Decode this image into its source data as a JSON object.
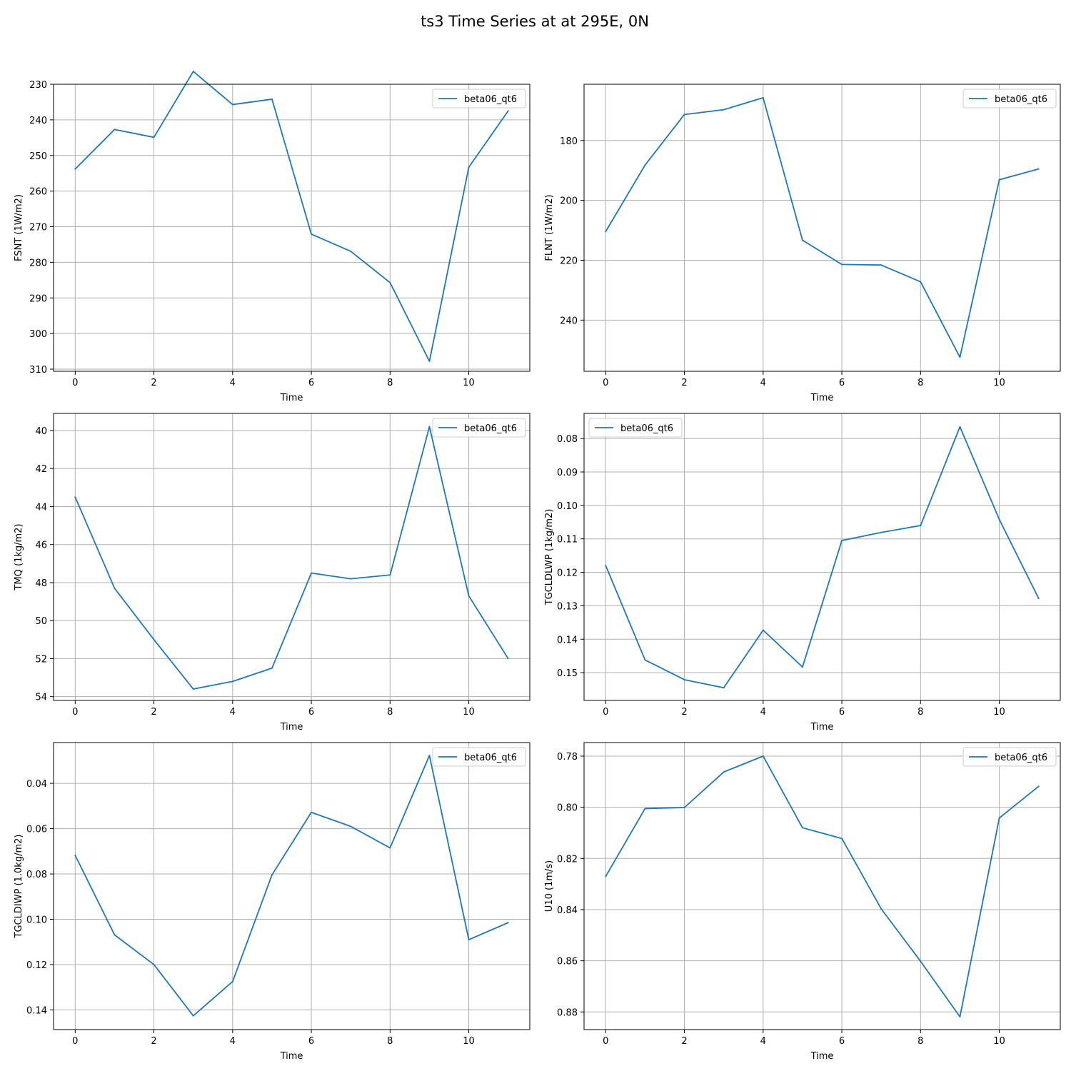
{
  "figure": {
    "title": "ts3 Time Series at at 295E, 0N"
  },
  "colors": {
    "series": "#1f77b4",
    "grid": "#b0b0b0",
    "axes": "#000000"
  },
  "chart_data": [
    {
      "type": "line",
      "xlabel": "Time",
      "ylabel": "FSNT (1W/m2)",
      "x": [
        0,
        1,
        2,
        3,
        4,
        5,
        6,
        7,
        8,
        9,
        10,
        11
      ],
      "xticks": [
        0,
        2,
        4,
        6,
        8,
        10
      ],
      "yticks": [
        230,
        240,
        250,
        260,
        270,
        280,
        290,
        300,
        310
      ],
      "ylim": [
        310.6,
        230
      ],
      "y_inverted": true,
      "grid": true,
      "legend_position": "upper right",
      "series": [
        {
          "name": "beta06_qt6",
          "values": [
            253.8,
            242.7,
            244.9,
            226.4,
            235.7,
            234.2,
            272.1,
            276.9,
            285.7,
            307.8,
            253.3,
            237.5
          ]
        }
      ]
    },
    {
      "type": "line",
      "xlabel": "Time",
      "ylabel": "FLNT (1W/m2)",
      "x": [
        0,
        1,
        2,
        3,
        4,
        5,
        6,
        7,
        8,
        9,
        10,
        11
      ],
      "xticks": [
        0,
        2,
        4,
        6,
        8,
        10
      ],
      "yticks": [
        180,
        200,
        220,
        240
      ],
      "ylim": [
        257.1,
        161.2
      ],
      "y_inverted": true,
      "grid": true,
      "legend_position": "upper right",
      "series": [
        {
          "name": "beta06_qt6",
          "values": [
            210.4,
            188.2,
            171.3,
            169.7,
            165.7,
            213.3,
            221.4,
            221.6,
            227.2,
            252.4,
            193.1,
            189.5
          ]
        }
      ]
    },
    {
      "type": "line",
      "xlabel": "Time",
      "ylabel": "TMQ (1kg/m2)",
      "x": [
        0,
        1,
        2,
        3,
        4,
        5,
        6,
        7,
        8,
        9,
        10,
        11
      ],
      "xticks": [
        0,
        2,
        4,
        6,
        8,
        10
      ],
      "yticks": [
        40,
        42,
        44,
        46,
        48,
        50,
        52,
        54
      ],
      "ylim": [
        54.2,
        39.1
      ],
      "y_inverted": true,
      "grid": true,
      "legend_position": "upper right",
      "series": [
        {
          "name": "beta06_qt6",
          "values": [
            43.5,
            48.3,
            51.0,
            53.6,
            53.2,
            52.5,
            47.5,
            47.8,
            47.6,
            39.8,
            48.7,
            52.0
          ]
        }
      ]
    },
    {
      "type": "line",
      "xlabel": "Time",
      "ylabel": "TGCLDLWP (1kg/m2)",
      "x": [
        0,
        1,
        2,
        3,
        4,
        5,
        6,
        7,
        8,
        9,
        10,
        11
      ],
      "xticks": [
        0,
        2,
        4,
        6,
        8,
        10
      ],
      "yticks": [
        "0.08",
        "0.09",
        "0.10",
        "0.11",
        "0.12",
        "0.13",
        "0.14",
        "0.15"
      ],
      "ylim": [
        0.1583,
        0.0725
      ],
      "y_inverted": true,
      "grid": true,
      "legend_position": "upper left",
      "series": [
        {
          "name": "beta06_qt6",
          "values": [
            0.118,
            0.1462,
            0.1521,
            0.1545,
            0.1373,
            0.1483,
            0.1105,
            0.1081,
            0.106,
            0.0765,
            0.1042,
            0.1278
          ]
        }
      ]
    },
    {
      "type": "line",
      "xlabel": "Time",
      "ylabel": "TGCLDIWP (1.0kg/m2)",
      "x": [
        0,
        1,
        2,
        3,
        4,
        5,
        6,
        7,
        8,
        9,
        10,
        11
      ],
      "xticks": [
        0,
        2,
        4,
        6,
        8,
        10
      ],
      "yticks": [
        "0.04",
        "0.06",
        "0.08",
        "0.10",
        "0.12",
        "0.14"
      ],
      "ylim": [
        0.1487,
        0.022
      ],
      "y_inverted": true,
      "grid": true,
      "legend_position": "upper right",
      "series": [
        {
          "name": "beta06_qt6",
          "values": [
            0.0718,
            0.1069,
            0.12,
            0.1426,
            0.1275,
            0.0804,
            0.0528,
            0.059,
            0.0685,
            0.0277,
            0.109,
            0.1015
          ]
        }
      ]
    },
    {
      "type": "line",
      "xlabel": "Time",
      "ylabel": "U10 (1m/s)",
      "x": [
        0,
        1,
        2,
        3,
        4,
        5,
        6,
        7,
        8,
        9,
        10,
        11
      ],
      "xticks": [
        0,
        2,
        4,
        6,
        8,
        10
      ],
      "yticks": [
        "0.78",
        "0.80",
        "0.82",
        "0.84",
        "0.86",
        "0.88"
      ],
      "ylim": [
        0.8869,
        0.7747
      ],
      "y_inverted": true,
      "grid": true,
      "legend_position": "upper right",
      "series": [
        {
          "name": "beta06_qt6",
          "values": [
            0.827,
            0.8005,
            0.8001,
            0.7862,
            0.78,
            0.808,
            0.8122,
            0.8397,
            0.8602,
            0.8819,
            0.8042,
            0.7918
          ]
        }
      ]
    }
  ]
}
